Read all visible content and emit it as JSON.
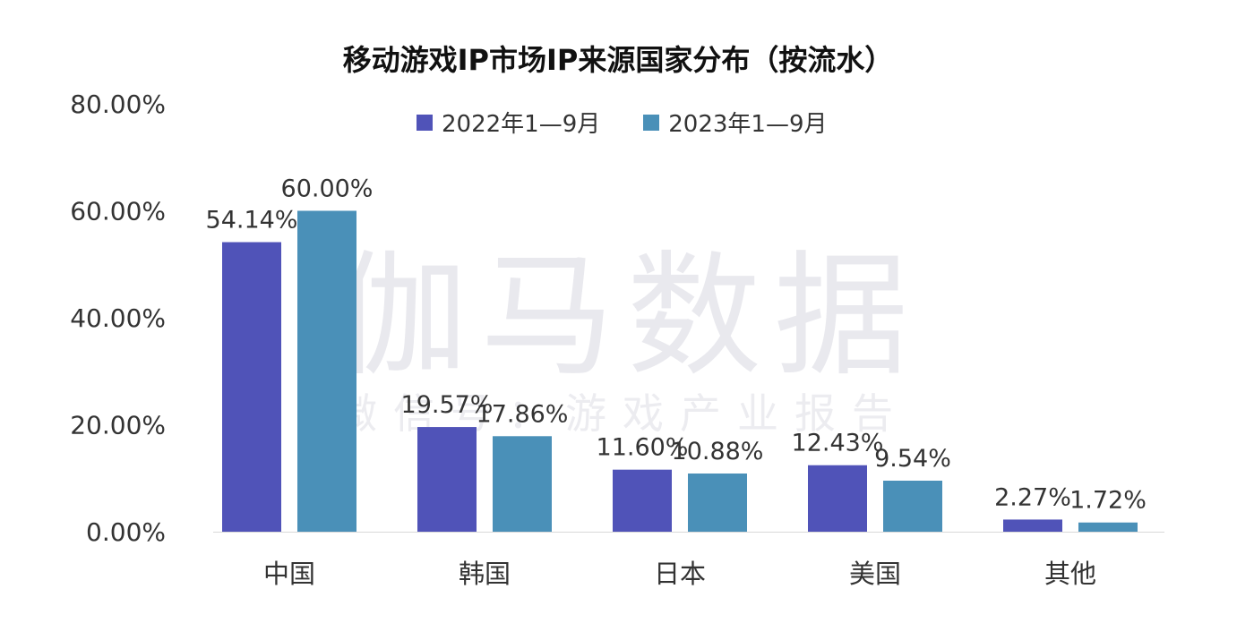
{
  "chart_data": {
    "type": "bar",
    "title": "移动游戏IP市场IP来源国家分布（按流水）",
    "xlabel": "",
    "ylabel": "",
    "ylim": [
      0,
      80
    ],
    "yticks": [
      "0.00%",
      "20.00%",
      "40.00%",
      "60.00%",
      "80.00%"
    ],
    "ytick_values": [
      0,
      20,
      40,
      60,
      80
    ],
    "categories": [
      "中国",
      "韩国",
      "日本",
      "美国",
      "其他"
    ],
    "series": [
      {
        "name": "2022年1—9月",
        "color": "#5053b8",
        "values": [
          54.14,
          19.57,
          11.6,
          12.43,
          2.27
        ],
        "labels": [
          "54.14%",
          "19.57%",
          "11.60%",
          "12.43%",
          "2.27%"
        ]
      },
      {
        "name": "2023年1—9月",
        "color": "#4a90b8",
        "values": [
          60.0,
          17.86,
          10.88,
          9.54,
          1.72
        ],
        "labels": [
          "60.00%",
          "17.86%",
          "10.88%",
          "9.54%",
          "1.72%"
        ]
      }
    ],
    "legend_position": "top",
    "grid": false
  },
  "watermark": {
    "main": "伽马数据",
    "sub": "微信号：游戏产业报告"
  }
}
